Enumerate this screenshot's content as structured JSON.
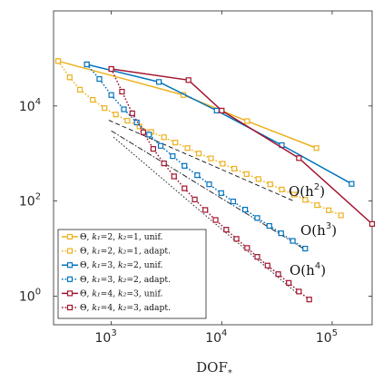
{
  "chart_data": {
    "type": "line",
    "title": "",
    "xlabel": "DOF",
    "xlabel_sub": "*",
    "ylabel": "",
    "xscale": "log",
    "yscale": "log",
    "xlim": [
      300,
      230000
    ],
    "ylim": [
      0.25,
      1000000
    ],
    "xticks": [
      {
        "base": "10",
        "exp": "3",
        "value": 1000
      },
      {
        "base": "10",
        "exp": "4",
        "value": 10000
      },
      {
        "base": "10",
        "exp": "5",
        "value": 100000
      }
    ],
    "yticks": [
      {
        "base": "10",
        "exp": "0",
        "value": 1
      },
      {
        "base": "10",
        "exp": "2",
        "value": 100
      },
      {
        "base": "10",
        "exp": "4",
        "value": 10000
      }
    ],
    "grid": false,
    "legend_position": "bottom-left",
    "series": [
      {
        "name": "Θ, k₁ =2, k₂ =1, unif.",
        "color": "#EDB120",
        "dash": "solid",
        "x": [
          330,
          4500,
          17000,
          72000
        ],
        "y": [
          88000,
          17000,
          4800,
          1300
        ]
      },
      {
        "name": "Θ, k₁ =2, k₂ =1, adapt.",
        "color": "#EDB120",
        "dash": "dotted",
        "x": [
          330,
          420,
          520,
          680,
          870,
          1100,
          1400,
          1800,
          2300,
          3000,
          3800,
          4900,
          6200,
          8000,
          10200,
          13000,
          16800,
          21500,
          27500,
          35000,
          45000,
          57000,
          73000,
          93000,
          120000
        ],
        "y": [
          88000,
          40000,
          22000,
          13500,
          9000,
          6600,
          4900,
          3700,
          2850,
          2200,
          1700,
          1300,
          1000,
          790,
          610,
          480,
          370,
          290,
          225,
          175,
          137,
          106,
          82,
          64,
          50
        ]
      },
      {
        "name": "Θ, k₁ =3, k₂ =2, unif.",
        "color": "#0072BD",
        "dash": "solid",
        "x": [
          600,
          2700,
          9000,
          35000,
          150000
        ],
        "y": [
          75000,
          32000,
          8000,
          1500,
          230
        ]
      },
      {
        "name": "Θ, k₁ =3, k₂ =2, adapt.",
        "color": "#0072BD",
        "dash": "dotted",
        "x": [
          600,
          780,
          1000,
          1300,
          1700,
          2200,
          2800,
          3600,
          4600,
          6000,
          7700,
          9900,
          12700,
          16300,
          21000,
          27000,
          34500,
          44000,
          57000
        ],
        "y": [
          75000,
          37000,
          17000,
          8500,
          4500,
          2500,
          1450,
          880,
          550,
          350,
          225,
          147,
          98,
          66,
          44,
          30,
          21,
          14.5,
          10
        ]
      },
      {
        "name": "Θ, k₁ =4, k₂ =3, unif.",
        "color": "#A2142F",
        "dash": "solid",
        "x": [
          1000,
          5000,
          10000,
          50000,
          230000
        ],
        "y": [
          60000,
          35000,
          8000,
          800,
          33
        ]
      },
      {
        "name": "Θ, k₁ =4, k₂ =3, adapt.",
        "color": "#A2142F",
        "dash": "dotted",
        "x": [
          1000,
          1250,
          1550,
          1950,
          2400,
          3000,
          3700,
          4600,
          5700,
          7100,
          8800,
          11000,
          13600,
          17000,
          21000,
          26000,
          32500,
          40500,
          50000,
          62000
        ],
        "y": [
          60000,
          20000,
          7000,
          2800,
          1250,
          620,
          330,
          185,
          108,
          65,
          40,
          25,
          16,
          10.3,
          6.7,
          4.4,
          2.9,
          1.9,
          1.25,
          0.85
        ]
      }
    ],
    "reference_lines": [
      {
        "label_prefix": "O(h",
        "exp": "2",
        "label_suffix": ")",
        "dash": "dashed",
        "x": [
          950,
          45000
        ],
        "y": [
          5000,
          100
        ]
      },
      {
        "label_prefix": "O(h",
        "exp": "3",
        "label_suffix": ")",
        "dash": "dashdot",
        "x": [
          1000,
          55000
        ],
        "y": [
          3000,
          10
        ]
      },
      {
        "label_prefix": "O(h",
        "exp": "4",
        "label_suffix": ")",
        "dash": "dotted",
        "x": [
          1050,
          48000
        ],
        "y": [
          2200,
          1.15
        ]
      }
    ],
    "legend_entries": [
      {
        "theta": "Θ",
        "k1": "k₁",
        "v1": "=2",
        "k2": "k₂",
        "v2": "=1",
        "mode": "unif."
      },
      {
        "theta": "Θ",
        "k1": "k₁",
        "v1": "=2",
        "k2": "k₂",
        "v2": "=1",
        "mode": "adapt."
      },
      {
        "theta": "Θ",
        "k1": "k₁",
        "v1": "=3",
        "k2": "k₂",
        "v2": "=2",
        "mode": "unif."
      },
      {
        "theta": "Θ",
        "k1": "k₁",
        "v1": "=3",
        "k2": "k₂",
        "v2": "=2",
        "mode": "adapt."
      },
      {
        "theta": "Θ",
        "k1": "k₁",
        "v1": "=4",
        "k2": "k₂",
        "v2": "=3",
        "mode": "unif."
      },
      {
        "theta": "Θ",
        "k1": "k₁",
        "v1": "=4",
        "k2": "k₂",
        "v2": "=3",
        "mode": "adapt."
      }
    ]
  }
}
